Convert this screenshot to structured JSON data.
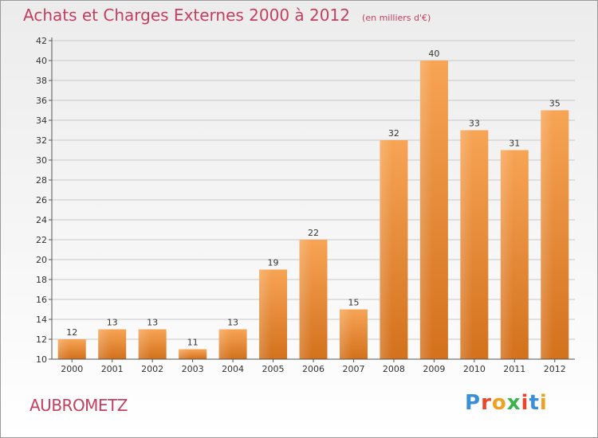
{
  "header": {
    "title": "Achats et Charges Externes 2000 à 2012",
    "unit": "(en milliers d'€)"
  },
  "footer": {
    "commune": "AUBROMETZ",
    "logo_text": "Proxiti",
    "logo_colors": [
      "#3a8fd6",
      "#e8472e",
      "#f0a020",
      "#3bb24a",
      "#e8472e",
      "#3a8fd6",
      "#f0a020"
    ]
  },
  "colors": {
    "title": "#c23f62",
    "bar": "#f0913a",
    "bar_light": "#f7a85a",
    "bar_dark": "#d0701e",
    "grid": "#c8c8c8",
    "axis": "#555555"
  },
  "chart_data": {
    "type": "bar",
    "title": "Achats et Charges Externes 2000 à 2012",
    "subtitle": "(en milliers d'€)",
    "xlabel": "",
    "ylabel": "",
    "categories": [
      "2000",
      "2001",
      "2002",
      "2003",
      "2004",
      "2005",
      "2006",
      "2007",
      "2008",
      "2009",
      "2010",
      "2011",
      "2012"
    ],
    "values": [
      12,
      13,
      13,
      11,
      13,
      19,
      22,
      15,
      32,
      40,
      33,
      31,
      35
    ],
    "ylim": [
      10,
      42
    ],
    "yticks": [
      10,
      12,
      14,
      16,
      18,
      20,
      22,
      24,
      26,
      28,
      30,
      32,
      34,
      36,
      38,
      40,
      42
    ],
    "grid": true,
    "data_labels": true
  }
}
